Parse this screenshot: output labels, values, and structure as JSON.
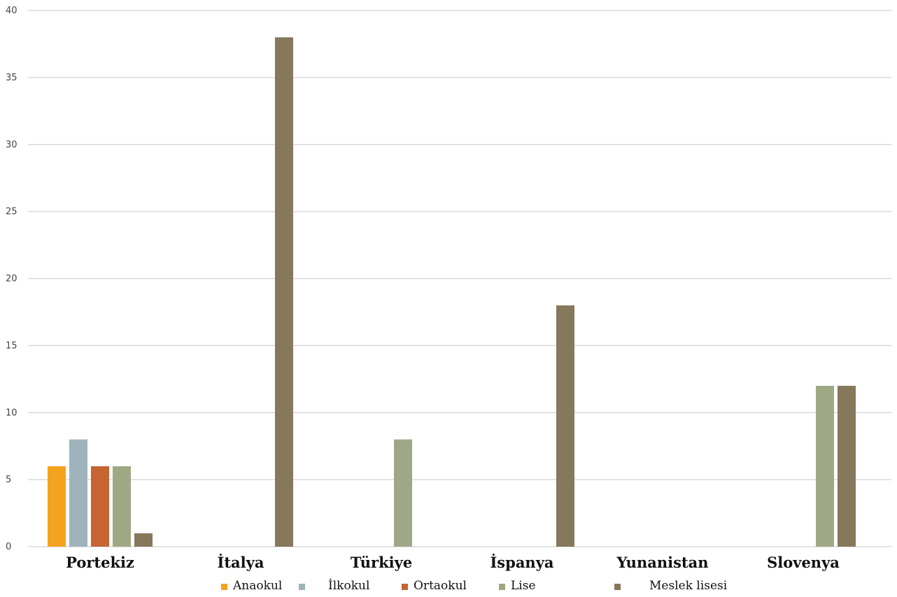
{
  "chart_data": {
    "type": "bar",
    "categories": [
      "Portekiz",
      "İtalya",
      "Türkiye",
      "İspanya",
      "Yunanistan",
      "Slovenya"
    ],
    "series": [
      {
        "name": "Anaokul",
        "color": "#f5a31e",
        "values": [
          6,
          0,
          0,
          0,
          0,
          0
        ]
      },
      {
        "name": "İlkokul",
        "color": "#9fb3bb",
        "values": [
          8,
          0,
          0,
          0,
          0,
          0
        ]
      },
      {
        "name": "Ortaokul",
        "color": "#c66432",
        "values": [
          6,
          0,
          0,
          0,
          0,
          0
        ]
      },
      {
        "name": "Lise",
        "color": "#9fa885",
        "values": [
          6,
          0,
          8,
          0,
          0,
          12
        ]
      },
      {
        "name": "Meslek lisesi",
        "color": "#86785b",
        "values": [
          1,
          38,
          0,
          18,
          0,
          12
        ]
      }
    ],
    "ylim": [
      0,
      40
    ],
    "yticks": [
      0,
      5,
      10,
      15,
      20,
      25,
      30,
      35,
      40
    ],
    "grid": true,
    "legend_position": "bottom",
    "title": "",
    "xlabel": "",
    "ylabel": ""
  }
}
